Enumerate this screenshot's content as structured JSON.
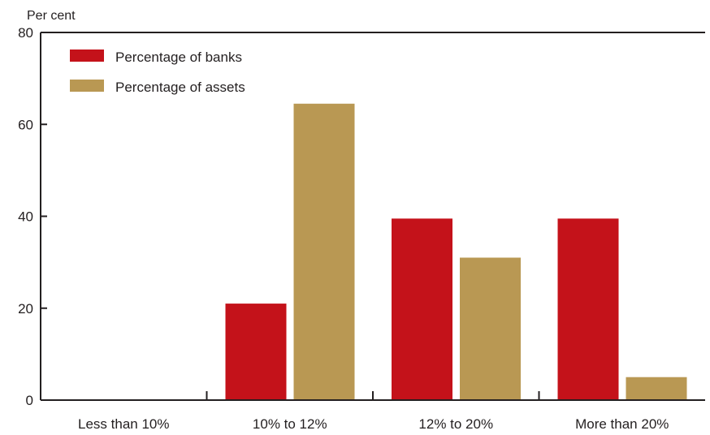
{
  "chart_data": {
    "type": "bar",
    "ylabel": "Per cent",
    "categories": [
      "Less than 10%",
      "10% to 12%",
      "12% to 20%",
      "More than 20%"
    ],
    "series": [
      {
        "name": "Percentage of banks",
        "color": "#c4121a",
        "values": [
          0,
          21,
          39.5,
          39.5
        ]
      },
      {
        "name": "Percentage of assets",
        "color": "#b99853",
        "values": [
          0,
          64.5,
          31,
          5
        ]
      }
    ],
    "ylim": [
      0,
      80
    ],
    "yticks": [
      0,
      20,
      40,
      60,
      80
    ],
    "grid": false,
    "legend_position": "top-left"
  }
}
